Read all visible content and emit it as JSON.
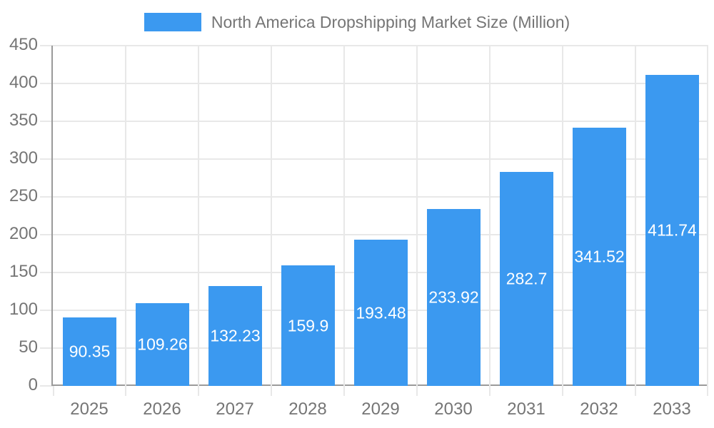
{
  "chart_data": {
    "type": "bar",
    "title": "North America Dropshipping Market Size (Million)",
    "legend": {
      "label": "North America Dropshipping Market Size (Million)",
      "position": "top"
    },
    "categories": [
      "2025",
      "2026",
      "2027",
      "2028",
      "2029",
      "2030",
      "2031",
      "2032",
      "2033"
    ],
    "series": [
      {
        "name": "North America Dropshipping Market Size (Million)",
        "values": [
          90.35,
          109.26,
          132.23,
          159.9,
          193.48,
          233.92,
          282.7,
          341.52,
          411.74
        ]
      }
    ],
    "value_labels": [
      "90.35",
      "109.26",
      "132.23",
      "159.9",
      "193.48",
      "233.92",
      "282.7",
      "341.52",
      "411.74"
    ],
    "xlabel": "",
    "ylabel": "",
    "ylim": [
      0,
      450
    ],
    "ytick_step": 50,
    "ytick_labels": [
      "0",
      "50",
      "100",
      "150",
      "200",
      "250",
      "300",
      "350",
      "400",
      "450"
    ],
    "grid": true,
    "colors": {
      "bar": "#3b99f0",
      "grid": "#e8e8e8",
      "axis": "#9a9a9a",
      "axis_text": "#757575",
      "value_text": "#ffffff",
      "background": "#ffffff"
    }
  }
}
